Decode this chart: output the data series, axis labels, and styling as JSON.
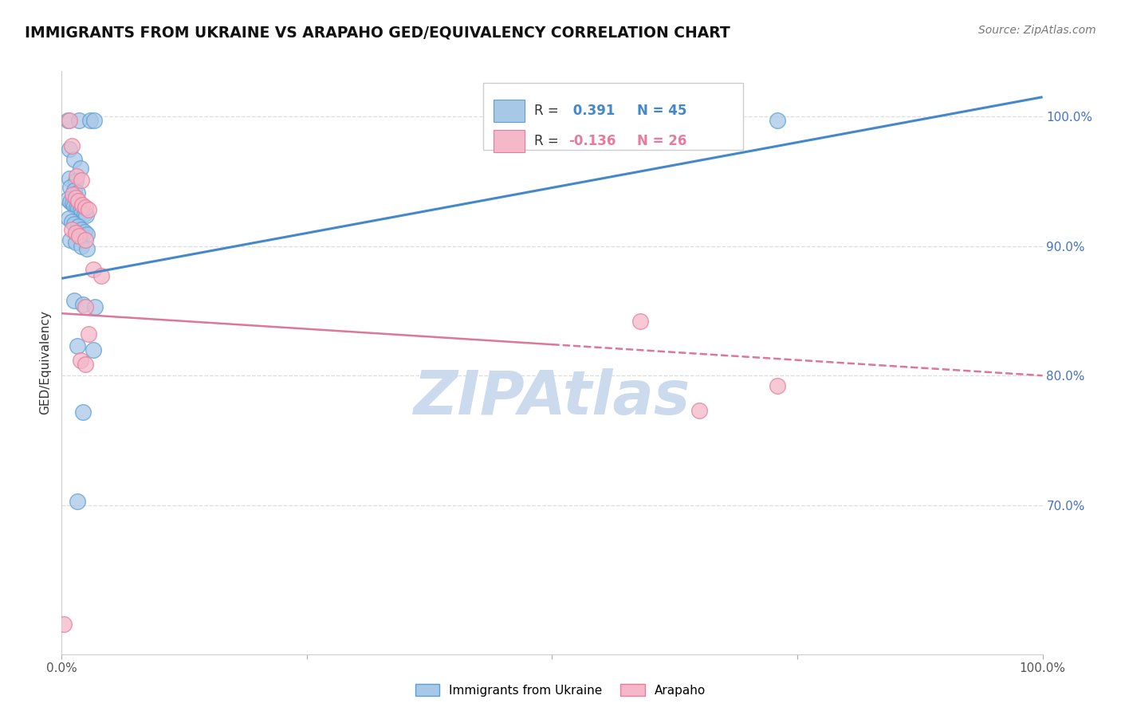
{
  "title": "IMMIGRANTS FROM UKRAINE VS ARAPAHO GED/EQUIVALENCY CORRELATION CHART",
  "source": "Source: ZipAtlas.com",
  "ylabel": "GED/Equivalency",
  "ytick_labels": [
    "100.0%",
    "90.0%",
    "80.0%",
    "70.0%"
  ],
  "ytick_values": [
    1.0,
    0.9,
    0.8,
    0.7
  ],
  "xlim": [
    0.0,
    1.0
  ],
  "ylim": [
    0.585,
    1.035
  ],
  "watermark": "ZIPAtlas",
  "blue_color": "#a8c8e8",
  "pink_color": "#f4b8c8",
  "blue_edge_color": "#5a9fd4",
  "pink_edge_color": "#e87a9a",
  "blue_line_color": "#4488cc",
  "pink_line_color": "#dd7799",
  "blue_scatter": [
    [
      0.006,
      0.997
    ],
    [
      0.018,
      0.997
    ],
    [
      0.029,
      0.997
    ],
    [
      0.033,
      0.997
    ],
    [
      0.008,
      0.975
    ],
    [
      0.013,
      0.967
    ],
    [
      0.019,
      0.96
    ],
    [
      0.008,
      0.952
    ],
    [
      0.014,
      0.95
    ],
    [
      0.009,
      0.945
    ],
    [
      0.013,
      0.943
    ],
    [
      0.016,
      0.941
    ],
    [
      0.006,
      0.936
    ],
    [
      0.009,
      0.934
    ],
    [
      0.011,
      0.933
    ],
    [
      0.013,
      0.931
    ],
    [
      0.015,
      0.93
    ],
    [
      0.017,
      0.929
    ],
    [
      0.019,
      0.928
    ],
    [
      0.021,
      0.926
    ],
    [
      0.023,
      0.925
    ],
    [
      0.025,
      0.924
    ],
    [
      0.007,
      0.921
    ],
    [
      0.01,
      0.919
    ],
    [
      0.013,
      0.917
    ],
    [
      0.017,
      0.915
    ],
    [
      0.02,
      0.913
    ],
    [
      0.023,
      0.911
    ],
    [
      0.026,
      0.909
    ],
    [
      0.009,
      0.905
    ],
    [
      0.014,
      0.903
    ],
    [
      0.02,
      0.9
    ],
    [
      0.026,
      0.898
    ],
    [
      0.013,
      0.858
    ],
    [
      0.022,
      0.855
    ],
    [
      0.034,
      0.853
    ],
    [
      0.016,
      0.823
    ],
    [
      0.032,
      0.82
    ],
    [
      0.022,
      0.772
    ],
    [
      0.016,
      0.703
    ],
    [
      0.66,
      0.999
    ],
    [
      0.73,
      0.997
    ]
  ],
  "pink_scatter": [
    [
      0.008,
      0.997
    ],
    [
      0.01,
      0.977
    ],
    [
      0.015,
      0.954
    ],
    [
      0.02,
      0.951
    ],
    [
      0.011,
      0.94
    ],
    [
      0.014,
      0.937
    ],
    [
      0.017,
      0.935
    ],
    [
      0.021,
      0.932
    ],
    [
      0.024,
      0.93
    ],
    [
      0.027,
      0.928
    ],
    [
      0.01,
      0.913
    ],
    [
      0.014,
      0.91
    ],
    [
      0.018,
      0.908
    ],
    [
      0.024,
      0.905
    ],
    [
      0.032,
      0.882
    ],
    [
      0.04,
      0.877
    ],
    [
      0.024,
      0.853
    ],
    [
      0.027,
      0.832
    ],
    [
      0.019,
      0.812
    ],
    [
      0.024,
      0.809
    ],
    [
      0.59,
      0.842
    ],
    [
      0.73,
      0.792
    ],
    [
      0.65,
      0.773
    ],
    [
      0.002,
      0.608
    ]
  ],
  "blue_trend": [
    0.0,
    0.875,
    1.0,
    1.015
  ],
  "pink_trend": [
    0.0,
    0.848,
    1.0,
    0.8
  ],
  "legend_r1_label": "R = ",
  "legend_r1_val": "0.391",
  "legend_r1_n": "N = 45",
  "legend_r2_label": "R = ",
  "legend_r2_val": "-0.136",
  "legend_r2_n": "N = 26",
  "background_color": "#ffffff",
  "grid_color": "#dddddd",
  "title_fontsize": 13.5,
  "label_fontsize": 11,
  "tick_fontsize": 11,
  "source_fontsize": 10,
  "right_axis_color": "#4472c4",
  "watermark_color": "#ccdaee",
  "watermark_fontsize": 55
}
